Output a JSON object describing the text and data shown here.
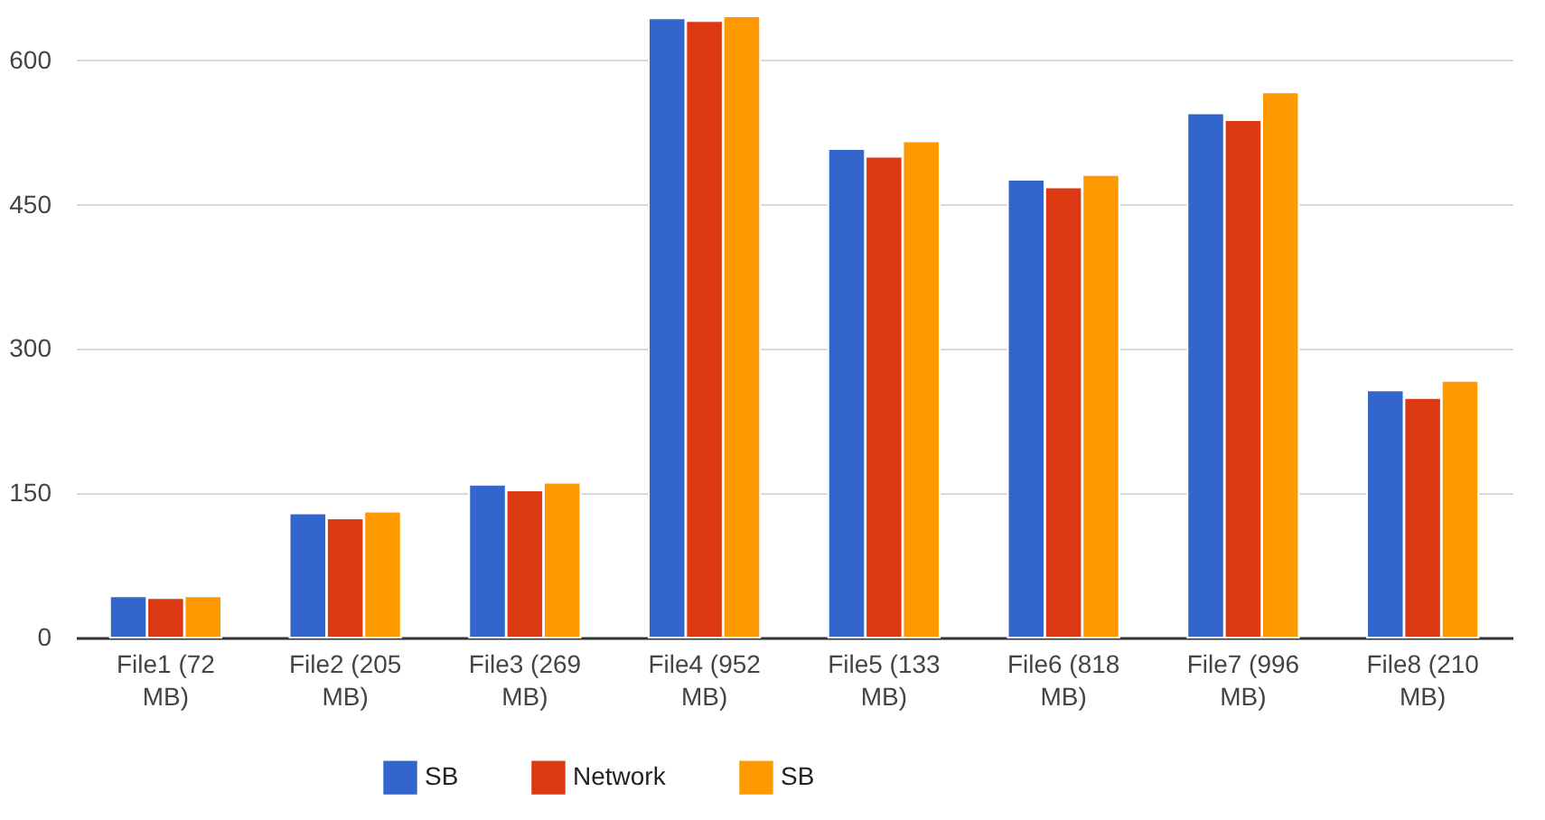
{
  "chart_data": {
    "type": "bar",
    "categories": [
      "File1 (72 MB)",
      "File2 (205 MB)",
      "File3 (269 MB)",
      "File4 (952 MB)",
      "File5 (133 MB)",
      "File6 (818 MB)",
      "File7 (996 MB)",
      "File8 (210 MB)"
    ],
    "series": [
      {
        "name": "SB",
        "color": "#3366cc",
        "values": [
          43,
          129,
          159,
          644,
          508,
          476,
          545,
          257
        ]
      },
      {
        "name": "Network",
        "color": "#dc3912",
        "values": [
          41,
          124,
          153,
          641,
          500,
          468,
          538,
          249
        ]
      },
      {
        "name": "SB",
        "color": "#ff9900",
        "values": [
          43,
          131,
          161,
          646,
          516,
          481,
          567,
          267
        ]
      }
    ],
    "ylim": [
      0,
      646
    ],
    "yticks": [
      0,
      150,
      300,
      450,
      600
    ],
    "grid": "y",
    "legend": "bottom"
  }
}
